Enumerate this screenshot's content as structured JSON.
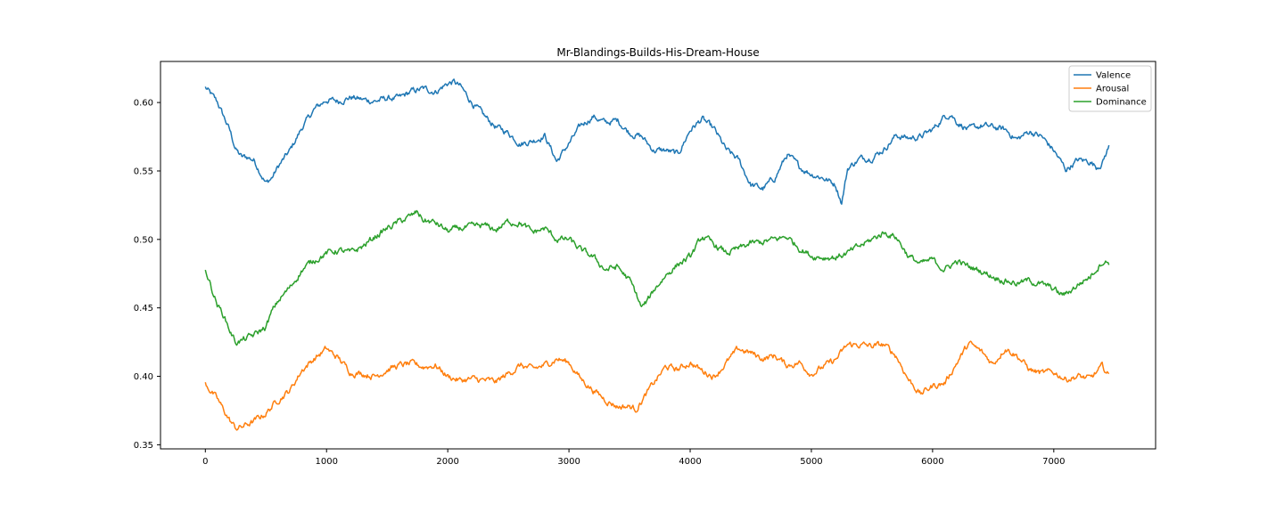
{
  "chart_data": {
    "type": "line",
    "title": "Mr-Blandings-Builds-His-Dream-House",
    "xlabel": "",
    "ylabel": "",
    "xlim": [
      -370,
      7840
    ],
    "ylim": [
      0.347,
      0.63
    ],
    "x_ticks": [
      0,
      1000,
      2000,
      3000,
      4000,
      5000,
      6000,
      7000
    ],
    "x_tick_labels": [
      "0",
      "1000",
      "2000",
      "3000",
      "4000",
      "5000",
      "6000",
      "7000"
    ],
    "y_ticks": [
      0.35,
      0.4,
      0.45,
      0.5,
      0.55,
      0.6
    ],
    "y_tick_labels": [
      "0.35",
      "0.40",
      "0.45",
      "0.50",
      "0.55",
      "0.60"
    ],
    "grid": false,
    "legend_position": "top-right",
    "series": [
      {
        "name": "Valence",
        "color": "#1f77b4",
        "x": [
          0,
          100,
          200,
          250,
          300,
          350,
          400,
          450,
          500,
          550,
          600,
          700,
          800,
          900,
          1000,
          1100,
          1200,
          1300,
          1400,
          1500,
          1600,
          1700,
          1800,
          1900,
          2000,
          2050,
          2100,
          2200,
          2300,
          2400,
          2500,
          2600,
          2700,
          2800,
          2900,
          3000,
          3100,
          3200,
          3300,
          3400,
          3500,
          3600,
          3700,
          3800,
          3900,
          4000,
          4100,
          4200,
          4300,
          4400,
          4500,
          4600,
          4700,
          4800,
          4900,
          5000,
          5100,
          5200,
          5250,
          5300,
          5400,
          5500,
          5600,
          5700,
          5800,
          5900,
          6000,
          6100,
          6150,
          6200,
          6300,
          6400,
          6500,
          6600,
          6700,
          6800,
          6900,
          7000,
          7050,
          7100,
          7200,
          7300,
          7350,
          7400,
          7460
        ],
        "values": [
          0.611,
          0.6,
          0.58,
          0.566,
          0.56,
          0.56,
          0.558,
          0.55,
          0.541,
          0.545,
          0.553,
          0.565,
          0.582,
          0.595,
          0.602,
          0.601,
          0.604,
          0.602,
          0.601,
          0.603,
          0.603,
          0.608,
          0.61,
          0.608,
          0.614,
          0.615,
          0.612,
          0.6,
          0.59,
          0.582,
          0.578,
          0.57,
          0.572,
          0.576,
          0.557,
          0.57,
          0.583,
          0.59,
          0.585,
          0.587,
          0.578,
          0.575,
          0.565,
          0.565,
          0.562,
          0.58,
          0.588,
          0.58,
          0.565,
          0.558,
          0.54,
          0.537,
          0.545,
          0.562,
          0.553,
          0.548,
          0.545,
          0.54,
          0.527,
          0.552,
          0.559,
          0.56,
          0.566,
          0.576,
          0.574,
          0.575,
          0.58,
          0.59,
          0.592,
          0.586,
          0.58,
          0.583,
          0.582,
          0.58,
          0.573,
          0.579,
          0.575,
          0.565,
          0.558,
          0.551,
          0.558,
          0.557,
          0.553,
          0.556,
          0.569
        ]
      },
      {
        "name": "Arousal",
        "color": "#ff7f0e",
        "x": [
          0,
          100,
          200,
          250,
          300,
          400,
          500,
          600,
          700,
          800,
          900,
          1000,
          1100,
          1200,
          1300,
          1400,
          1500,
          1600,
          1700,
          1800,
          1900,
          2000,
          2100,
          2200,
          2300,
          2400,
          2500,
          2600,
          2700,
          2800,
          2900,
          3000,
          3100,
          3200,
          3300,
          3400,
          3500,
          3550,
          3600,
          3700,
          3800,
          3900,
          4000,
          4100,
          4200,
          4300,
          4400,
          4500,
          4600,
          4700,
          4800,
          4900,
          5000,
          5100,
          5200,
          5300,
          5400,
          5500,
          5600,
          5700,
          5800,
          5900,
          6000,
          6100,
          6200,
          6300,
          6400,
          6500,
          6600,
          6700,
          6800,
          6900,
          7000,
          7100,
          7200,
          7300,
          7400,
          7460
        ],
        "values": [
          0.395,
          0.383,
          0.368,
          0.362,
          0.363,
          0.367,
          0.373,
          0.383,
          0.39,
          0.405,
          0.413,
          0.42,
          0.413,
          0.403,
          0.402,
          0.4,
          0.405,
          0.408,
          0.409,
          0.407,
          0.408,
          0.4,
          0.397,
          0.398,
          0.397,
          0.396,
          0.402,
          0.408,
          0.405,
          0.408,
          0.413,
          0.41,
          0.398,
          0.39,
          0.383,
          0.378,
          0.378,
          0.376,
          0.382,
          0.395,
          0.407,
          0.405,
          0.41,
          0.404,
          0.4,
          0.41,
          0.42,
          0.417,
          0.413,
          0.415,
          0.408,
          0.41,
          0.402,
          0.407,
          0.412,
          0.423,
          0.423,
          0.422,
          0.423,
          0.415,
          0.398,
          0.387,
          0.393,
          0.395,
          0.41,
          0.424,
          0.418,
          0.409,
          0.421,
          0.415,
          0.405,
          0.402,
          0.403,
          0.398,
          0.4,
          0.398,
          0.407,
          0.4
        ]
      },
      {
        "name": "Dominance",
        "color": "#2ca02c",
        "x": [
          0,
          50,
          100,
          150,
          200,
          250,
          300,
          400,
          500,
          550,
          600,
          700,
          800,
          900,
          1000,
          1100,
          1200,
          1300,
          1400,
          1500,
          1600,
          1700,
          1750,
          1800,
          1900,
          2000,
          2100,
          2200,
          2300,
          2400,
          2500,
          2600,
          2700,
          2800,
          2900,
          3000,
          3100,
          3200,
          3300,
          3400,
          3500,
          3550,
          3600,
          3650,
          3700,
          3800,
          3900,
          4000,
          4100,
          4200,
          4300,
          4400,
          4500,
          4600,
          4700,
          4800,
          4900,
          5000,
          5100,
          5200,
          5300,
          5400,
          5500,
          5600,
          5700,
          5800,
          5900,
          6000,
          6100,
          6200,
          6300,
          6400,
          6500,
          6600,
          6700,
          6800,
          6900,
          7000,
          7050,
          7100,
          7200,
          7300,
          7400,
          7460
        ],
        "values": [
          0.479,
          0.465,
          0.452,
          0.445,
          0.434,
          0.425,
          0.426,
          0.43,
          0.436,
          0.447,
          0.455,
          0.465,
          0.478,
          0.485,
          0.49,
          0.492,
          0.49,
          0.495,
          0.502,
          0.508,
          0.513,
          0.517,
          0.52,
          0.514,
          0.512,
          0.506,
          0.508,
          0.509,
          0.51,
          0.507,
          0.513,
          0.512,
          0.505,
          0.508,
          0.5,
          0.5,
          0.492,
          0.487,
          0.478,
          0.48,
          0.47,
          0.461,
          0.45,
          0.455,
          0.463,
          0.474,
          0.482,
          0.487,
          0.502,
          0.496,
          0.49,
          0.493,
          0.497,
          0.498,
          0.5,
          0.502,
          0.494,
          0.488,
          0.487,
          0.487,
          0.49,
          0.495,
          0.5,
          0.505,
          0.502,
          0.488,
          0.482,
          0.485,
          0.478,
          0.484,
          0.48,
          0.477,
          0.473,
          0.47,
          0.468,
          0.47,
          0.467,
          0.464,
          0.46,
          0.46,
          0.467,
          0.473,
          0.484,
          0.483
        ]
      }
    ]
  }
}
